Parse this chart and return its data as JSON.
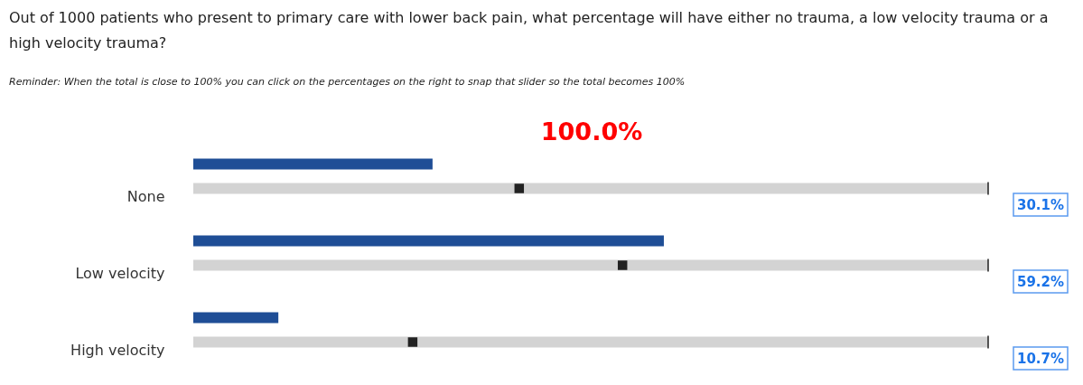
{
  "chart_data": {
    "type": "bar",
    "orientation": "horizontal",
    "title": "Out of 1000 patients who present to primary care with lower back pain, what percentage will have either no trauma, a low velocity trauma or a high velocity trauma?",
    "subtitle": "Reminder: When the total is close to 100% you can click on the percentages on the right to snap that slider so the total becomes 100%",
    "annotations": [
      "100.0%"
    ],
    "categories": [
      "None",
      "Low velocity",
      "High velocity"
    ],
    "series": [
      {
        "type": "bar",
        "color": "#1f4e96",
        "values": [
          30.1,
          59.2,
          10.7
        ],
        "value_labels": [
          "30.1%",
          "59.2%",
          "10.7%"
        ]
      },
      {
        "type": "scatter",
        "color": "#222222",
        "marker": "square",
        "values": [
          41,
          54,
          27.6
        ]
      }
    ],
    "xlim": [
      0,
      100
    ],
    "tick_labels": "y"
  }
}
